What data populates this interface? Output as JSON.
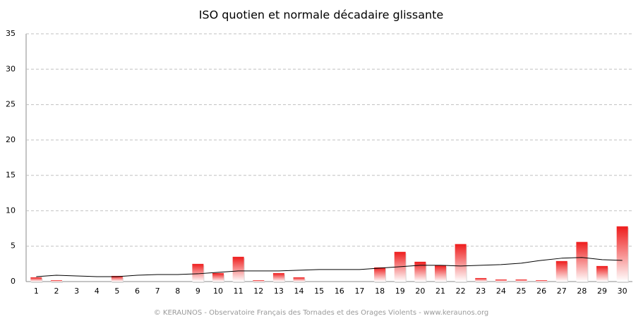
{
  "chart_data": {
    "type": "bar",
    "title": "ISO quotien et normale décadaire glissante",
    "source": "© KERAUNOS - Observatoire Français des Tornades et des Orages Violents - www.keraunos.org",
    "categories": [
      "1",
      "2",
      "3",
      "4",
      "5",
      "6",
      "7",
      "8",
      "9",
      "10",
      "11",
      "12",
      "13",
      "14",
      "15",
      "16",
      "17",
      "18",
      "19",
      "20",
      "21",
      "22",
      "23",
      "24",
      "25",
      "26",
      "27",
      "28",
      "29",
      "30"
    ],
    "series": [
      {
        "type": "bar",
        "color": "#ee1c1c",
        "values": [
          0.6,
          0.2,
          0,
          0,
          0.8,
          0,
          0,
          0,
          2.5,
          1.2,
          3.5,
          0.2,
          1.2,
          0.6,
          0,
          0,
          0,
          2.0,
          4.2,
          2.8,
          2.3,
          5.3,
          0.5,
          0.3,
          0.3,
          0.2,
          2.9,
          5.6,
          2.2,
          7.8
        ]
      },
      {
        "type": "line",
        "color": "#000000",
        "values": [
          0.7,
          0.9,
          0.8,
          0.7,
          0.7,
          0.9,
          1.0,
          1.0,
          1.1,
          1.3,
          1.5,
          1.5,
          1.5,
          1.6,
          1.7,
          1.7,
          1.7,
          1.9,
          2.1,
          2.3,
          2.3,
          2.2,
          2.3,
          2.4,
          2.6,
          3.0,
          3.3,
          3.4,
          3.1,
          3.0
        ]
      }
    ],
    "ylim": [
      0,
      35
    ],
    "yticks": [
      0,
      5,
      10,
      15,
      20,
      25,
      30,
      35
    ],
    "grid": true
  }
}
